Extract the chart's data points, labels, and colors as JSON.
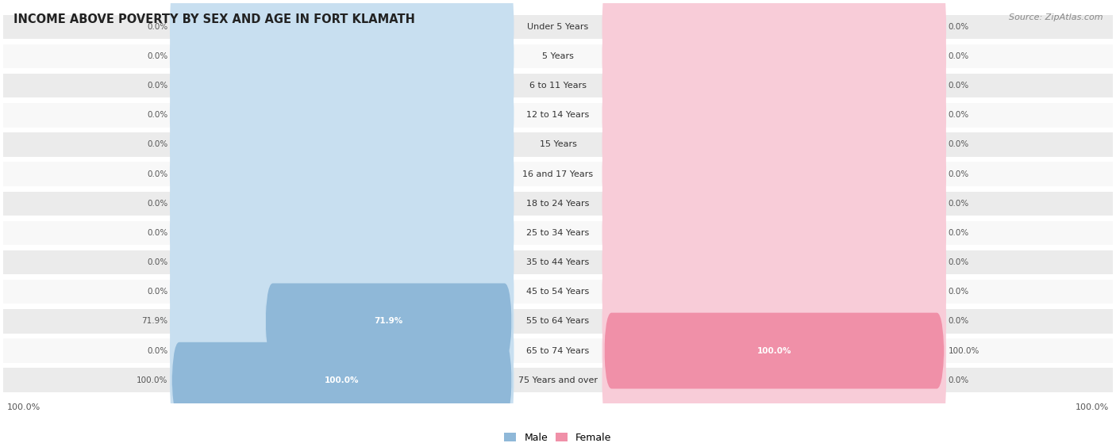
{
  "title": "INCOME ABOVE POVERTY BY SEX AND AGE IN FORT KLAMATH",
  "source": "Source: ZipAtlas.com",
  "categories": [
    "Under 5 Years",
    "5 Years",
    "6 to 11 Years",
    "12 to 14 Years",
    "15 Years",
    "16 and 17 Years",
    "18 to 24 Years",
    "25 to 34 Years",
    "35 to 44 Years",
    "45 to 54 Years",
    "55 to 64 Years",
    "65 to 74 Years",
    "75 Years and over"
  ],
  "male_values": [
    0.0,
    0.0,
    0.0,
    0.0,
    0.0,
    0.0,
    0.0,
    0.0,
    0.0,
    0.0,
    71.9,
    0.0,
    100.0
  ],
  "female_values": [
    0.0,
    0.0,
    0.0,
    0.0,
    0.0,
    0.0,
    0.0,
    0.0,
    0.0,
    0.0,
    0.0,
    100.0,
    0.0
  ],
  "male_color": "#8fb8d8",
  "female_color": "#f090a8",
  "male_bg_color": "#c8dff0",
  "female_bg_color": "#f8ccd8",
  "male_label": "Male",
  "female_label": "Female",
  "row_bg_light": "#ebebeb",
  "row_bg_white": "#f8f8f8",
  "max_value": 100.0,
  "title_fontsize": 10.5,
  "label_fontsize": 8.0,
  "value_fontsize": 7.5,
  "bottom_label": "100.0%"
}
